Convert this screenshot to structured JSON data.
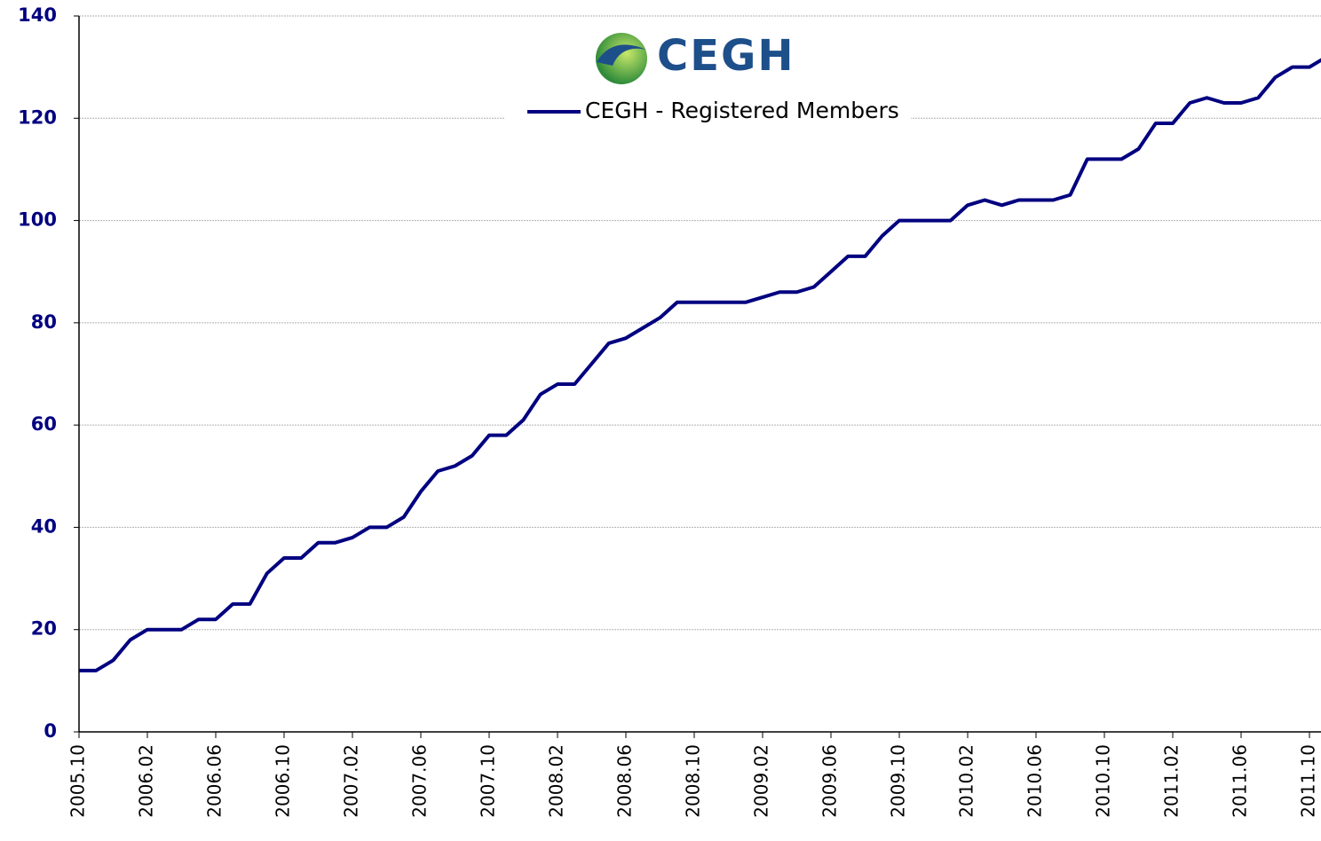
{
  "chart_data": {
    "type": "line",
    "logo": "CEGH",
    "x": [
      "2005.10",
      null,
      null,
      null,
      "2006.02",
      null,
      null,
      null,
      "2006.06",
      null,
      null,
      null,
      "2006.10",
      null,
      null,
      null,
      "2007.02",
      null,
      null,
      null,
      "2007.06",
      null,
      null,
      null,
      "2007.10",
      null,
      null,
      null,
      "2008.02",
      null,
      null,
      null,
      "2008.06",
      null,
      null,
      null,
      "2008.10",
      null,
      null,
      null,
      "2009.02",
      null,
      null,
      null,
      "2009.06",
      null,
      null,
      null,
      "2009.10",
      null,
      null,
      null,
      "2010.02",
      null,
      null,
      null,
      "2010.06",
      null,
      null,
      null,
      "2010.10",
      null,
      null,
      null,
      "2011.02",
      null,
      null,
      null,
      "2011.06",
      null,
      null,
      null,
      "2011.10",
      null
    ],
    "series": [
      {
        "name": "CEGH - Registered Members",
        "color": "#000080",
        "values": [
          12,
          12,
          14,
          18,
          20,
          20,
          20,
          22,
          22,
          25,
          25,
          31,
          34,
          34,
          37,
          37,
          38,
          40,
          40,
          42,
          47,
          51,
          52,
          54,
          58,
          58,
          61,
          66,
          68,
          68,
          72,
          76,
          77,
          79,
          81,
          84,
          84,
          84,
          84,
          84,
          85,
          86,
          86,
          87,
          90,
          93,
          93,
          97,
          100,
          100,
          100,
          100,
          103,
          104,
          103,
          104,
          104,
          104,
          105,
          112,
          112,
          112,
          114,
          119,
          119,
          123,
          124,
          123,
          123,
          124,
          128,
          130,
          130,
          132
        ]
      }
    ],
    "ylim": [
      0,
      140
    ],
    "yticks": [
      0,
      20,
      40,
      60,
      80,
      100,
      120,
      140
    ],
    "grid": true,
    "legend": "top"
  }
}
